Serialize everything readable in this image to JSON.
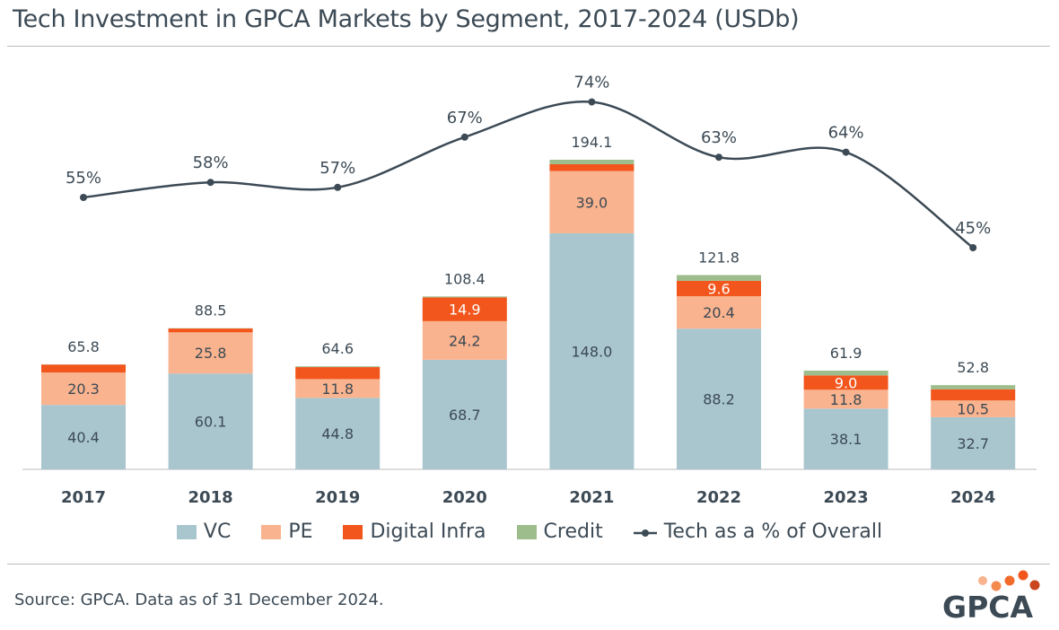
{
  "title": "Tech Investment in GPCA Markets by Segment, 2017-2024 (USDb)",
  "source": "Source: GPCA. Data as of 31 December 2024.",
  "logo_text": "GPCA",
  "colors": {
    "VC": "#a9c6cf",
    "PE": "#f9b38e",
    "Digital Infra": "#f2561c",
    "Credit": "#9dbd8c",
    "line": "#3c4a55"
  },
  "chart_data": {
    "type": "bar",
    "title": "Tech Investment in GPCA Markets by Segment, 2017-2024 (USDb)",
    "categories": [
      "2017",
      "2018",
      "2019",
      "2020",
      "2021",
      "2022",
      "2023",
      "2024"
    ],
    "series": [
      {
        "name": "VC",
        "values": [
          40.4,
          60.1,
          44.8,
          68.7,
          148.0,
          88.2,
          38.1,
          32.7
        ],
        "labels": [
          "40.4",
          "60.1",
          "44.8",
          "68.7",
          "148.0",
          "88.2",
          "38.1",
          "32.7"
        ]
      },
      {
        "name": "PE",
        "values": [
          20.3,
          25.8,
          11.8,
          24.2,
          39.0,
          20.4,
          11.8,
          10.5
        ],
        "labels": [
          "20.3",
          "25.8",
          "11.8",
          "24.2",
          "39.0",
          "20.4",
          "11.8",
          "10.5"
        ]
      },
      {
        "name": "Digital Infra",
        "values": [
          5.0,
          2.4,
          7.5,
          14.9,
          4.3,
          9.6,
          9.0,
          7.0
        ],
        "labels": [
          null,
          null,
          null,
          "14.9",
          null,
          "9.6",
          "9.0",
          null
        ]
      },
      {
        "name": "Credit",
        "values": [
          0.1,
          0.2,
          0.5,
          0.6,
          2.8,
          3.6,
          3.0,
          2.6
        ],
        "labels": [
          null,
          null,
          null,
          null,
          null,
          null,
          null,
          null
        ]
      }
    ],
    "totals": [
      "65.8",
      "88.5",
      "64.6",
      "108.4",
      "194.1",
      "121.8",
      "61.9",
      "52.8"
    ],
    "line": {
      "name": "Tech as a % of Overall",
      "values": [
        55,
        58,
        57,
        67,
        74,
        63,
        64,
        45
      ],
      "labels": [
        "55%",
        "58%",
        "57%",
        "67%",
        "74%",
        "63%",
        "64%",
        "45%"
      ]
    },
    "ylim": [
      0,
      200
    ],
    "legend": [
      "VC",
      "PE",
      "Digital Infra",
      "Credit",
      "Tech as a % of Overall"
    ],
    "legend_position": "bottom",
    "grid": false
  }
}
